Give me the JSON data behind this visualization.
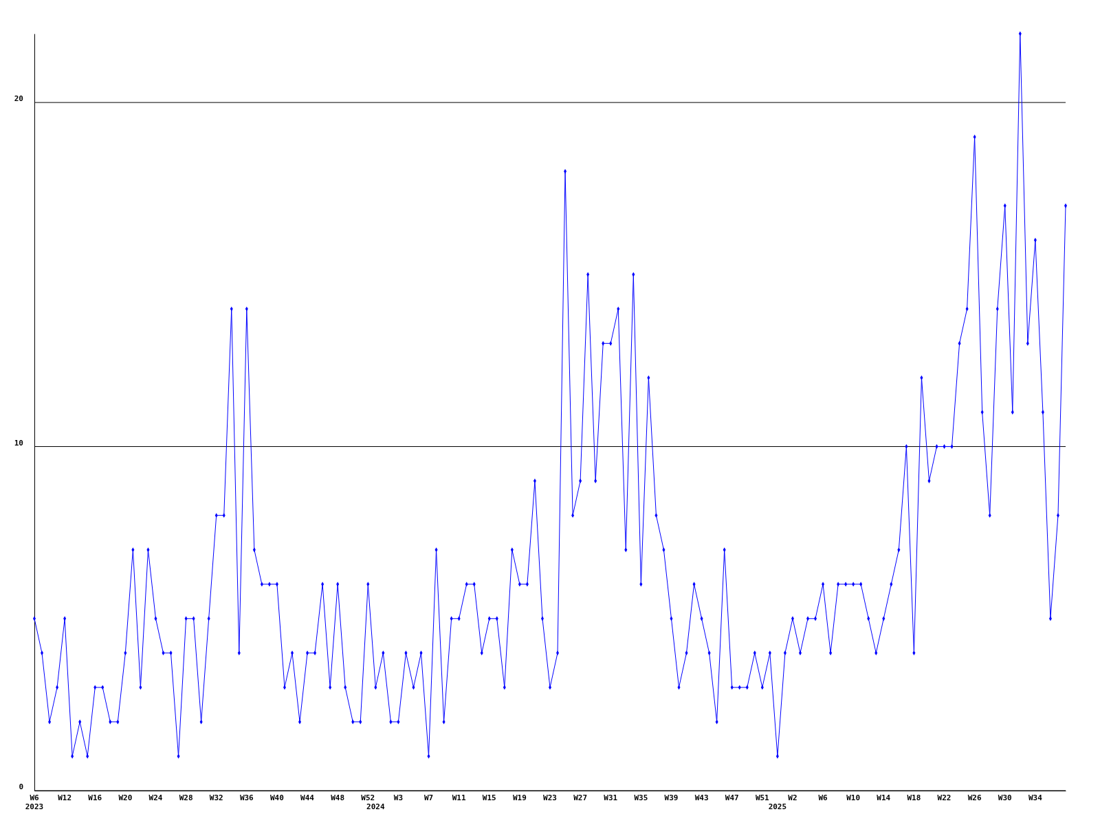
{
  "chart_data": {
    "type": "line",
    "categories": [
      "W6\n2023",
      null,
      null,
      null,
      "W12",
      null,
      null,
      null,
      "W16",
      null,
      null,
      null,
      "W20",
      null,
      null,
      null,
      "W24",
      null,
      null,
      null,
      "W28",
      null,
      null,
      null,
      "W32",
      null,
      null,
      null,
      "W36",
      null,
      null,
      null,
      "W40",
      null,
      null,
      null,
      "W44",
      null,
      null,
      null,
      "W48",
      null,
      null,
      null,
      "W52",
      "\n2024",
      null,
      null,
      "W3",
      null,
      null,
      null,
      "W7",
      null,
      null,
      null,
      "W11",
      null,
      null,
      null,
      "W15",
      null,
      null,
      null,
      "W19",
      null,
      null,
      null,
      "W23",
      null,
      null,
      null,
      "W27",
      null,
      null,
      null,
      "W31",
      null,
      null,
      null,
      "W35",
      null,
      null,
      null,
      "W39",
      null,
      null,
      null,
      "W43",
      null,
      null,
      null,
      "W47",
      null,
      null,
      null,
      "W51",
      null,
      "\n2025",
      null,
      "W2",
      null,
      null,
      null,
      "W6",
      null,
      null,
      null,
      "W10",
      null,
      null,
      null,
      "W14",
      null,
      null,
      null,
      "W18",
      null,
      null,
      null,
      "W22",
      null,
      null,
      null,
      "W26",
      null,
      null,
      null,
      "W30",
      null,
      null,
      null,
      "W34",
      null,
      null,
      null,
      null
    ],
    "series": [
      {
        "color": "#0000ff",
        "values": [
          5,
          4,
          2,
          3,
          5,
          1,
          2,
          1,
          3,
          3,
          2,
          2,
          4,
          7,
          3,
          7,
          5,
          4,
          4,
          1,
          5,
          5,
          2,
          5,
          8,
          8,
          14,
          4,
          14,
          7,
          6,
          6,
          6,
          3,
          4,
          2,
          4,
          4,
          6,
          3,
          6,
          3,
          2,
          2,
          6,
          3,
          4,
          2,
          2,
          4,
          3,
          4,
          1,
          7,
          2,
          5,
          5,
          6,
          6,
          4,
          5,
          5,
          3,
          7,
          6,
          6,
          9,
          5,
          3,
          4,
          18,
          8,
          9,
          15,
          9,
          13,
          13,
          14,
          7,
          15,
          6,
          12,
          8,
          7,
          5,
          3,
          4,
          6,
          5,
          4,
          2,
          7,
          3,
          3,
          3,
          4,
          3,
          4,
          1,
          4,
          5,
          4,
          5,
          5,
          6,
          4,
          6,
          6,
          6,
          6,
          5,
          4,
          5,
          6,
          7,
          10,
          4,
          12,
          9,
          10,
          10,
          10,
          13,
          14,
          19,
          11,
          8,
          14,
          17,
          11,
          22,
          13,
          16,
          11,
          5,
          8,
          17
        ]
      }
    ],
    "ylim": [
      0,
      22
    ],
    "yticks": [
      0,
      10,
      20
    ],
    "grid": "y",
    "marker": "diamond",
    "line_style": "solid"
  }
}
